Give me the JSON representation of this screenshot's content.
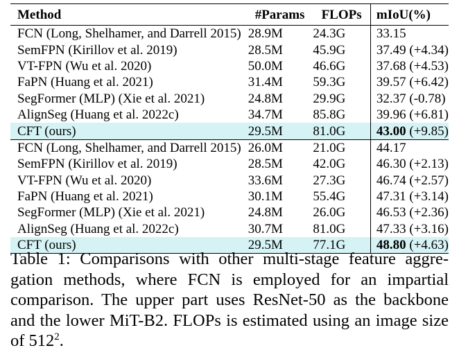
{
  "table": {
    "headers": {
      "method": "Method",
      "params": "#Params",
      "flops": "FLOPs",
      "miou": "mIoU(%)"
    },
    "upper": [
      {
        "method": "FCN (Long, Shelhamer, and Darrell 2015)",
        "params": "28.9M",
        "flops": "24.3G",
        "miou": "33.15",
        "delta": ""
      },
      {
        "method": "SemFPN (Kirillov et al. 2019)",
        "params": "28.5M",
        "flops": "45.9G",
        "miou": "37.49",
        "delta": "(+4.34)"
      },
      {
        "method": "VT-FPN (Wu et al. 2020)",
        "params": "50.0M",
        "flops": "46.6G",
        "miou": "37.68",
        "delta": "(+4.53)"
      },
      {
        "method": "FaPN (Huang et al. 2021)",
        "params": "31.4M",
        "flops": "59.3G",
        "miou": "39.57",
        "delta": "(+6.42)"
      },
      {
        "method": "SegFormer (MLP) (Xie et al. 2021)",
        "params": "24.8M",
        "flops": "29.9G",
        "miou": "32.37",
        "delta": "(-0.78)"
      },
      {
        "method": "AlignSeg (Huang et al. 2022c)",
        "params": "34.7M",
        "flops": "85.8G",
        "miou": "39.96",
        "delta": "(+6.81)"
      },
      {
        "method": "CFT (ours)",
        "params": "29.5M",
        "flops": "81.0G",
        "miou": "43.00",
        "delta": "(+9.85)"
      }
    ],
    "lower": [
      {
        "method": "FCN (Long, Shelhamer, and Darrell 2015)",
        "params": "26.0M",
        "flops": "21.0G",
        "miou": "44.17",
        "delta": ""
      },
      {
        "method": "SemFPN (Kirillov et al. 2019)",
        "params": "28.5M",
        "flops": "42.0G",
        "miou": "46.30",
        "delta": "(+2.13)"
      },
      {
        "method": "VT-FPN (Wu et al. 2020)",
        "params": "33.6M",
        "flops": "27.3G",
        "miou": "46.74",
        "delta": "(+2.57)"
      },
      {
        "method": "FaPN (Huang et al. 2021)",
        "params": "30.1M",
        "flops": "55.4G",
        "miou": "47.31",
        "delta": "(+3.14)"
      },
      {
        "method": "SegFormer (MLP) (Xie et al. 2021)",
        "params": "24.8M",
        "flops": "26.0G",
        "miou": "46.53",
        "delta": "(+2.36)"
      },
      {
        "method": "AlignSeg (Huang et al. 2022c)",
        "params": "30.7M",
        "flops": "81.0G",
        "miou": "47.33",
        "delta": "(+3.16)"
      },
      {
        "method": "CFT (ours)",
        "params": "29.5M",
        "flops": "77.1G",
        "miou": "48.80",
        "delta": "(+4.63)"
      }
    ],
    "highlight_color": "#d5f3f5"
  },
  "caption": {
    "text": "Table 1: Comparisons with other multi-stage feature aggre-gation methods, where FCN is employed for an impartial comparison. The upper part uses ResNet-50 as the backbone and the lower MiT-B2. FLOPs is estimated using an image size of 512",
    "sup": "2",
    "end": "."
  }
}
